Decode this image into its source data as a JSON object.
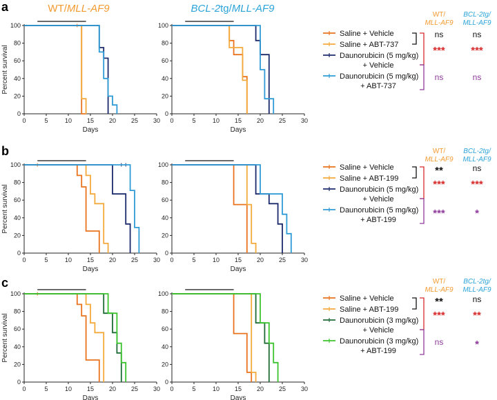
{
  "colors": {
    "saline_vehicle": "#E8731C",
    "saline_drug": "#F4A93B",
    "dauno_vehicle_ab": "#1B2A6B",
    "dauno_drug_ab": "#2E9BD6",
    "dauno_vehicle_c": "#1E6B35",
    "dauno_drug_c": "#3CC42E",
    "wt_header": "#F29A2E",
    "bcl_header": "#2AA3D8",
    "ns_purple": "#8E3A9A",
    "star_red": "#D62A2A",
    "black": "#111111"
  },
  "panels": [
    {
      "label": "a",
      "col_titles": {
        "wt_prefix": "WT/",
        "wt_gene": "MLL-AF9",
        "bcl_italic": "BCL-2",
        "bcl_rest": "tg/",
        "bcl_gene": "MLL-AF9"
      },
      "legend": [
        {
          "label": "Saline + Vehicle",
          "color_key": "saline_vehicle"
        },
        {
          "label": "Saline + ABT-737",
          "color_key": "saline_drug"
        },
        {
          "label": "Daunorubicin (5 mg/kg)",
          "label2": "+ Vehicle",
          "color_key": "dauno_vehicle_ab"
        },
        {
          "label": "Daunorubicin (5 mg/kg)",
          "label2": "+ ABT-737",
          "color_key": "dauno_drug_ab"
        }
      ],
      "stat_headers": {
        "wt_l1": "WT/",
        "wt_l2": "MLL-AF9",
        "bcl_l1": "BCL-2tg/",
        "bcl_l2": "MLL-AF9"
      },
      "stats": {
        "wt": [
          "ns",
          "***",
          "ns"
        ],
        "bcl": [
          "ns",
          "***",
          "ns"
        ]
      }
    },
    {
      "label": "b",
      "legend": [
        {
          "label": "Saline + Vehicle",
          "color_key": "saline_vehicle"
        },
        {
          "label": "Saline + ABT-199",
          "color_key": "saline_drug"
        },
        {
          "label": "Daunorubicin (5 mg/kg)",
          "label2": "+ Vehicle",
          "color_key": "dauno_vehicle_ab"
        },
        {
          "label": "Daunorubicin (5 mg/kg)",
          "label2": "+ ABT-199",
          "color_key": "dauno_drug_ab"
        }
      ],
      "stat_headers": {
        "wt_l1": "WT/",
        "wt_l2": "MLL-AF9",
        "bcl_l1": "BCL-2tg/",
        "bcl_l2": "MLL-AF9"
      },
      "stats": {
        "wt": [
          "**",
          "***",
          "***"
        ],
        "bcl": [
          "ns",
          "***",
          "*"
        ]
      }
    },
    {
      "label": "c",
      "legend": [
        {
          "label": "Saline + Vehicle",
          "color_key": "saline_vehicle"
        },
        {
          "label": "Saline + ABT-199",
          "color_key": "saline_drug"
        },
        {
          "label": "Daunorubicin (3 mg/kg)",
          "label2": "+ Vehicle",
          "color_key": "dauno_vehicle_c"
        },
        {
          "label": "Daunorubicin (3 mg/kg)",
          "label2": "+ ABT-199",
          "color_key": "dauno_drug_c"
        }
      ],
      "stat_headers": {
        "wt_l1": "WT/",
        "wt_l2": "MLL-AF9",
        "bcl_l1": "BCL-2tg/",
        "bcl_l2": "MLL-AF9"
      },
      "stats": {
        "wt": [
          "**",
          "***",
          "ns"
        ],
        "bcl": [
          "ns",
          "**",
          "*"
        ]
      }
    }
  ],
  "chart_data": [
    {
      "type": "line",
      "panel": "a",
      "genotype": "WT/MLL-AF9",
      "xlabel": "Days",
      "ylabel": "Percent survival",
      "xlim": [
        0,
        30
      ],
      "ylim": [
        0,
        100
      ],
      "xticks": [
        0,
        5,
        10,
        15,
        20,
        25,
        30
      ],
      "yticks": [
        0,
        20,
        40,
        60,
        80,
        100
      ],
      "treatment_bar": [
        3,
        14
      ],
      "series": [
        {
          "name": "Saline + Vehicle",
          "color_key": "saline_vehicle",
          "x": [
            0,
            13,
            13,
            14,
            14
          ],
          "y": [
            100,
            100,
            0,
            0,
            0
          ],
          "censor_x": [
            12
          ]
        },
        {
          "name": "Saline + ABT-737",
          "color_key": "saline_drug",
          "x": [
            0,
            13,
            13,
            14,
            14
          ],
          "y": [
            100,
            100,
            17,
            17,
            0
          ]
        },
        {
          "name": "Daunorubicin (5 mg/kg) + Vehicle",
          "color_key": "dauno_vehicle_ab",
          "x": [
            0,
            17,
            17,
            18,
            18,
            19,
            19
          ],
          "y": [
            100,
            100,
            75,
            75,
            63,
            63,
            0
          ]
        },
        {
          "name": "Daunorubicin (5 mg/kg) + ABT-737",
          "color_key": "dauno_drug_ab",
          "x": [
            0,
            17,
            17,
            18,
            18,
            19,
            19,
            20,
            20,
            21,
            21
          ],
          "y": [
            100,
            100,
            70,
            70,
            40,
            40,
            20,
            20,
            10,
            10,
            0
          ]
        }
      ]
    },
    {
      "type": "line",
      "panel": "a",
      "genotype": "BCL-2tg/MLL-AF9",
      "xlabel": "Days",
      "ylabel": "",
      "xlim": [
        0,
        30
      ],
      "ylim": [
        0,
        100
      ],
      "xticks": [
        0,
        5,
        10,
        15,
        20,
        25,
        30
      ],
      "yticks": [
        0,
        20,
        40,
        60,
        80,
        100
      ],
      "treatment_bar": [
        3,
        14
      ],
      "series": [
        {
          "name": "Saline + Vehicle",
          "color_key": "saline_vehicle",
          "x": [
            0,
            13,
            13,
            14,
            14,
            16,
            16,
            17,
            17
          ],
          "y": [
            100,
            100,
            83,
            83,
            67,
            67,
            42,
            42,
            0
          ]
        },
        {
          "name": "Saline + ABT-737",
          "color_key": "saline_drug",
          "x": [
            0,
            13,
            13,
            14,
            14,
            16,
            16,
            17,
            17
          ],
          "y": [
            100,
            100,
            75,
            75,
            75,
            75,
            38,
            38,
            0
          ]
        },
        {
          "name": "Daunorubicin (5 mg/kg) + Vehicle",
          "color_key": "dauno_vehicle_ab",
          "x": [
            0,
            19,
            19,
            20,
            20,
            22,
            22
          ],
          "y": [
            100,
            100,
            83,
            83,
            67,
            67,
            0
          ]
        },
        {
          "name": "Daunorubicin (5 mg/kg) + ABT-737",
          "color_key": "dauno_drug_ab",
          "x": [
            0,
            20,
            20,
            21,
            21,
            22,
            22,
            23,
            23
          ],
          "y": [
            100,
            100,
            50,
            50,
            17,
            17,
            17,
            17,
            0
          ]
        }
      ]
    },
    {
      "type": "line",
      "panel": "b",
      "genotype": "WT/MLL-AF9",
      "xlabel": "Days",
      "ylabel": "Percent survival",
      "xlim": [
        0,
        30
      ],
      "ylim": [
        0,
        100
      ],
      "xticks": [
        0,
        5,
        10,
        15,
        20,
        25,
        30
      ],
      "yticks": [
        0,
        20,
        40,
        60,
        80,
        100
      ],
      "treatment_bar": [
        3,
        14
      ],
      "series": [
        {
          "name": "Saline + Vehicle",
          "color_key": "saline_vehicle",
          "x": [
            0,
            12,
            12,
            13,
            13,
            14,
            14,
            17,
            17
          ],
          "y": [
            100,
            100,
            88,
            88,
            75,
            75,
            25,
            25,
            0
          ],
          "censor_x": [
            3
          ]
        },
        {
          "name": "Saline + ABT-199",
          "color_key": "saline_drug",
          "x": [
            0,
            14,
            14,
            15,
            15,
            16,
            16,
            18,
            18,
            19,
            19
          ],
          "y": [
            100,
            100,
            88,
            88,
            67,
            67,
            56,
            56,
            11,
            11,
            0
          ]
        },
        {
          "name": "Daunorubicin (5 mg/kg) + Vehicle",
          "color_key": "dauno_vehicle_ab",
          "x": [
            0,
            20,
            20,
            23,
            23,
            24,
            24
          ],
          "y": [
            100,
            100,
            67,
            67,
            33,
            33,
            0
          ],
          "censor_x": [
            22,
            23
          ]
        },
        {
          "name": "Daunorubicin (5 mg/kg) + ABT-199",
          "color_key": "dauno_drug_ab",
          "x": [
            0,
            24,
            24,
            25,
            25,
            26,
            26
          ],
          "y": [
            100,
            100,
            71,
            71,
            29,
            29,
            0
          ]
        }
      ]
    },
    {
      "type": "line",
      "panel": "b",
      "genotype": "BCL-2tg/MLL-AF9",
      "xlabel": "Days",
      "ylabel": "",
      "xlim": [
        0,
        30
      ],
      "ylim": [
        0,
        100
      ],
      "xticks": [
        0,
        5,
        10,
        15,
        20,
        25,
        30
      ],
      "yticks": [
        0,
        20,
        40,
        60,
        80,
        100
      ],
      "treatment_bar": [
        3,
        14
      ],
      "series": [
        {
          "name": "Saline + Vehicle",
          "color_key": "saline_vehicle",
          "x": [
            0,
            14,
            14,
            17,
            17
          ],
          "y": [
            100,
            100,
            55,
            55,
            0
          ]
        },
        {
          "name": "Saline + ABT-199",
          "color_key": "saline_drug",
          "x": [
            0,
            17,
            17,
            18,
            18,
            19,
            19
          ],
          "y": [
            100,
            100,
            55,
            55,
            11,
            11,
            0
          ]
        },
        {
          "name": "Daunorubicin (5 mg/kg) + Vehicle",
          "color_key": "dauno_vehicle_ab",
          "x": [
            0,
            19,
            19,
            22,
            22,
            24,
            24,
            25,
            25
          ],
          "y": [
            100,
            100,
            67,
            67,
            56,
            56,
            33,
            33,
            0
          ]
        },
        {
          "name": "Daunorubicin (5 mg/kg) + ABT-199",
          "color_key": "dauno_drug_ab",
          "x": [
            0,
            20,
            20,
            25,
            25,
            26,
            26,
            27,
            27
          ],
          "y": [
            100,
            100,
            67,
            67,
            44,
            44,
            22,
            22,
            0
          ]
        }
      ]
    },
    {
      "type": "line",
      "panel": "c",
      "genotype": "WT/MLL-AF9",
      "xlabel": "Days",
      "ylabel": "Percent survival",
      "xlim": [
        0,
        30
      ],
      "ylim": [
        0,
        100
      ],
      "xticks": [
        0,
        5,
        10,
        15,
        20,
        25,
        30
      ],
      "yticks": [
        0,
        20,
        40,
        60,
        80,
        100
      ],
      "treatment_bar": [
        3,
        14
      ],
      "series": [
        {
          "name": "Saline + Vehicle",
          "color_key": "saline_vehicle",
          "x": [
            0,
            12,
            12,
            13,
            13,
            14,
            14,
            17,
            17
          ],
          "y": [
            100,
            100,
            88,
            88,
            75,
            75,
            25,
            25,
            0
          ],
          "censor_x": [
            3
          ]
        },
        {
          "name": "Saline + ABT-199",
          "color_key": "saline_drug",
          "x": [
            0,
            14,
            14,
            15,
            15,
            16,
            16,
            18,
            18
          ],
          "y": [
            100,
            100,
            88,
            88,
            67,
            67,
            56,
            56,
            0
          ]
        },
        {
          "name": "Daunorubicin (3 mg/kg) + Vehicle",
          "color_key": "dauno_vehicle_c",
          "x": [
            0,
            18,
            18,
            20,
            20,
            21,
            21,
            22,
            22
          ],
          "y": [
            100,
            100,
            78,
            78,
            56,
            56,
            33,
            33,
            0
          ]
        },
        {
          "name": "Daunorubicin (3 mg/kg) + ABT-199",
          "color_key": "dauno_drug_c",
          "x": [
            0,
            19,
            19,
            21,
            21,
            22,
            22,
            23,
            23
          ],
          "y": [
            100,
            100,
            78,
            78,
            44,
            44,
            22,
            22,
            0
          ]
        }
      ]
    },
    {
      "type": "line",
      "panel": "c",
      "genotype": "BCL-2tg/MLL-AF9",
      "xlabel": "Days",
      "ylabel": "",
      "xlim": [
        0,
        30
      ],
      "ylim": [
        0,
        100
      ],
      "xticks": [
        0,
        5,
        10,
        15,
        20,
        25,
        30
      ],
      "yticks": [
        0,
        20,
        40,
        60,
        80,
        100
      ],
      "treatment_bar": [
        3,
        14
      ],
      "series": [
        {
          "name": "Saline + Vehicle",
          "color_key": "saline_vehicle",
          "x": [
            0,
            14,
            14,
            17,
            17,
            18,
            18
          ],
          "y": [
            100,
            100,
            55,
            55,
            11,
            11,
            0
          ]
        },
        {
          "name": "Saline + ABT-199",
          "color_key": "saline_drug",
          "x": [
            0,
            18,
            18,
            19,
            19
          ],
          "y": [
            100,
            100,
            11,
            11,
            0
          ]
        },
        {
          "name": "Daunorubicin (3 mg/kg) + Vehicle",
          "color_key": "dauno_vehicle_c",
          "x": [
            0,
            19,
            19,
            21,
            21,
            22,
            22
          ],
          "y": [
            100,
            100,
            67,
            67,
            44,
            44,
            0
          ]
        },
        {
          "name": "Daunorubicin (3 mg/kg) + ABT-199",
          "color_key": "dauno_drug_c",
          "x": [
            0,
            20,
            20,
            22,
            22,
            23,
            23,
            24,
            24
          ],
          "y": [
            100,
            100,
            67,
            67,
            44,
            44,
            22,
            22,
            0
          ]
        }
      ]
    }
  ]
}
